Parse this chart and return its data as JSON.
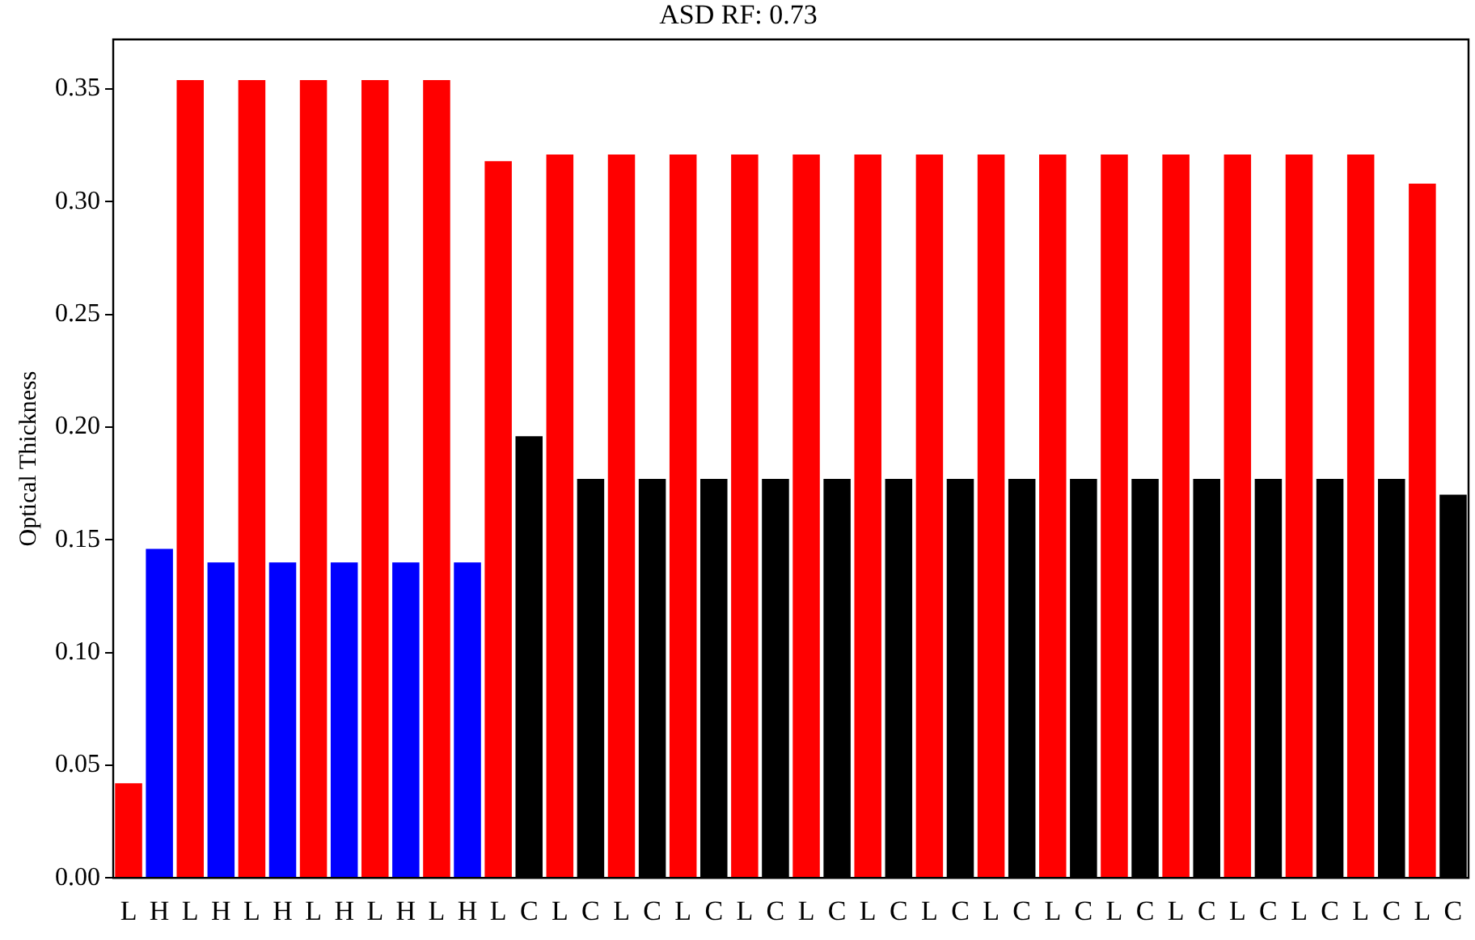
{
  "chart_data": {
    "type": "bar",
    "title": "ASD RF: 0.73",
    "ylabel": "Optical Thickness",
    "categories": [
      "L",
      "H",
      "L",
      "H",
      "L",
      "H",
      "L",
      "H",
      "L",
      "H",
      "L",
      "H",
      "L",
      "C",
      "L",
      "C",
      "L",
      "C",
      "L",
      "C",
      "L",
      "C",
      "L",
      "C",
      "L",
      "C",
      "L",
      "C",
      "L",
      "C",
      "L",
      "C",
      "L",
      "C",
      "L",
      "C",
      "L",
      "C",
      "L",
      "C",
      "L",
      "C",
      "L",
      "C"
    ],
    "values": [
      0.042,
      0.146,
      0.354,
      0.14,
      0.354,
      0.14,
      0.354,
      0.14,
      0.354,
      0.14,
      0.354,
      0.14,
      0.318,
      0.196,
      0.321,
      0.177,
      0.321,
      0.177,
      0.321,
      0.177,
      0.321,
      0.177,
      0.321,
      0.177,
      0.321,
      0.177,
      0.321,
      0.177,
      0.321,
      0.177,
      0.321,
      0.177,
      0.321,
      0.177,
      0.321,
      0.177,
      0.321,
      0.177,
      0.321,
      0.177,
      0.321,
      0.177,
      0.308,
      0.17
    ],
    "colors": [
      "#ff0000",
      "#0000ff",
      "#ff0000",
      "#0000ff",
      "#ff0000",
      "#0000ff",
      "#ff0000",
      "#0000ff",
      "#ff0000",
      "#0000ff",
      "#ff0000",
      "#0000ff",
      "#ff0000",
      "#000000",
      "#ff0000",
      "#000000",
      "#ff0000",
      "#000000",
      "#ff0000",
      "#000000",
      "#ff0000",
      "#000000",
      "#ff0000",
      "#000000",
      "#ff0000",
      "#000000",
      "#ff0000",
      "#000000",
      "#ff0000",
      "#000000",
      "#ff0000",
      "#000000",
      "#ff0000",
      "#000000",
      "#ff0000",
      "#000000",
      "#ff0000",
      "#000000",
      "#ff0000",
      "#000000",
      "#ff0000",
      "#000000",
      "#ff0000",
      "#000000"
    ],
    "ylim": [
      0,
      0.372
    ],
    "yticks": [
      {
        "value": 0,
        "label": "0.00"
      },
      {
        "value": 0.05,
        "label": "0.05"
      },
      {
        "value": 0.1,
        "label": "0.10"
      },
      {
        "value": 0.15,
        "label": "0.15"
      },
      {
        "value": 0.2,
        "label": "0.20"
      },
      {
        "value": 0.25,
        "label": "0.25"
      },
      {
        "value": 0.3,
        "label": "0.30"
      },
      {
        "value": 0.35,
        "label": "0.35"
      }
    ]
  }
}
